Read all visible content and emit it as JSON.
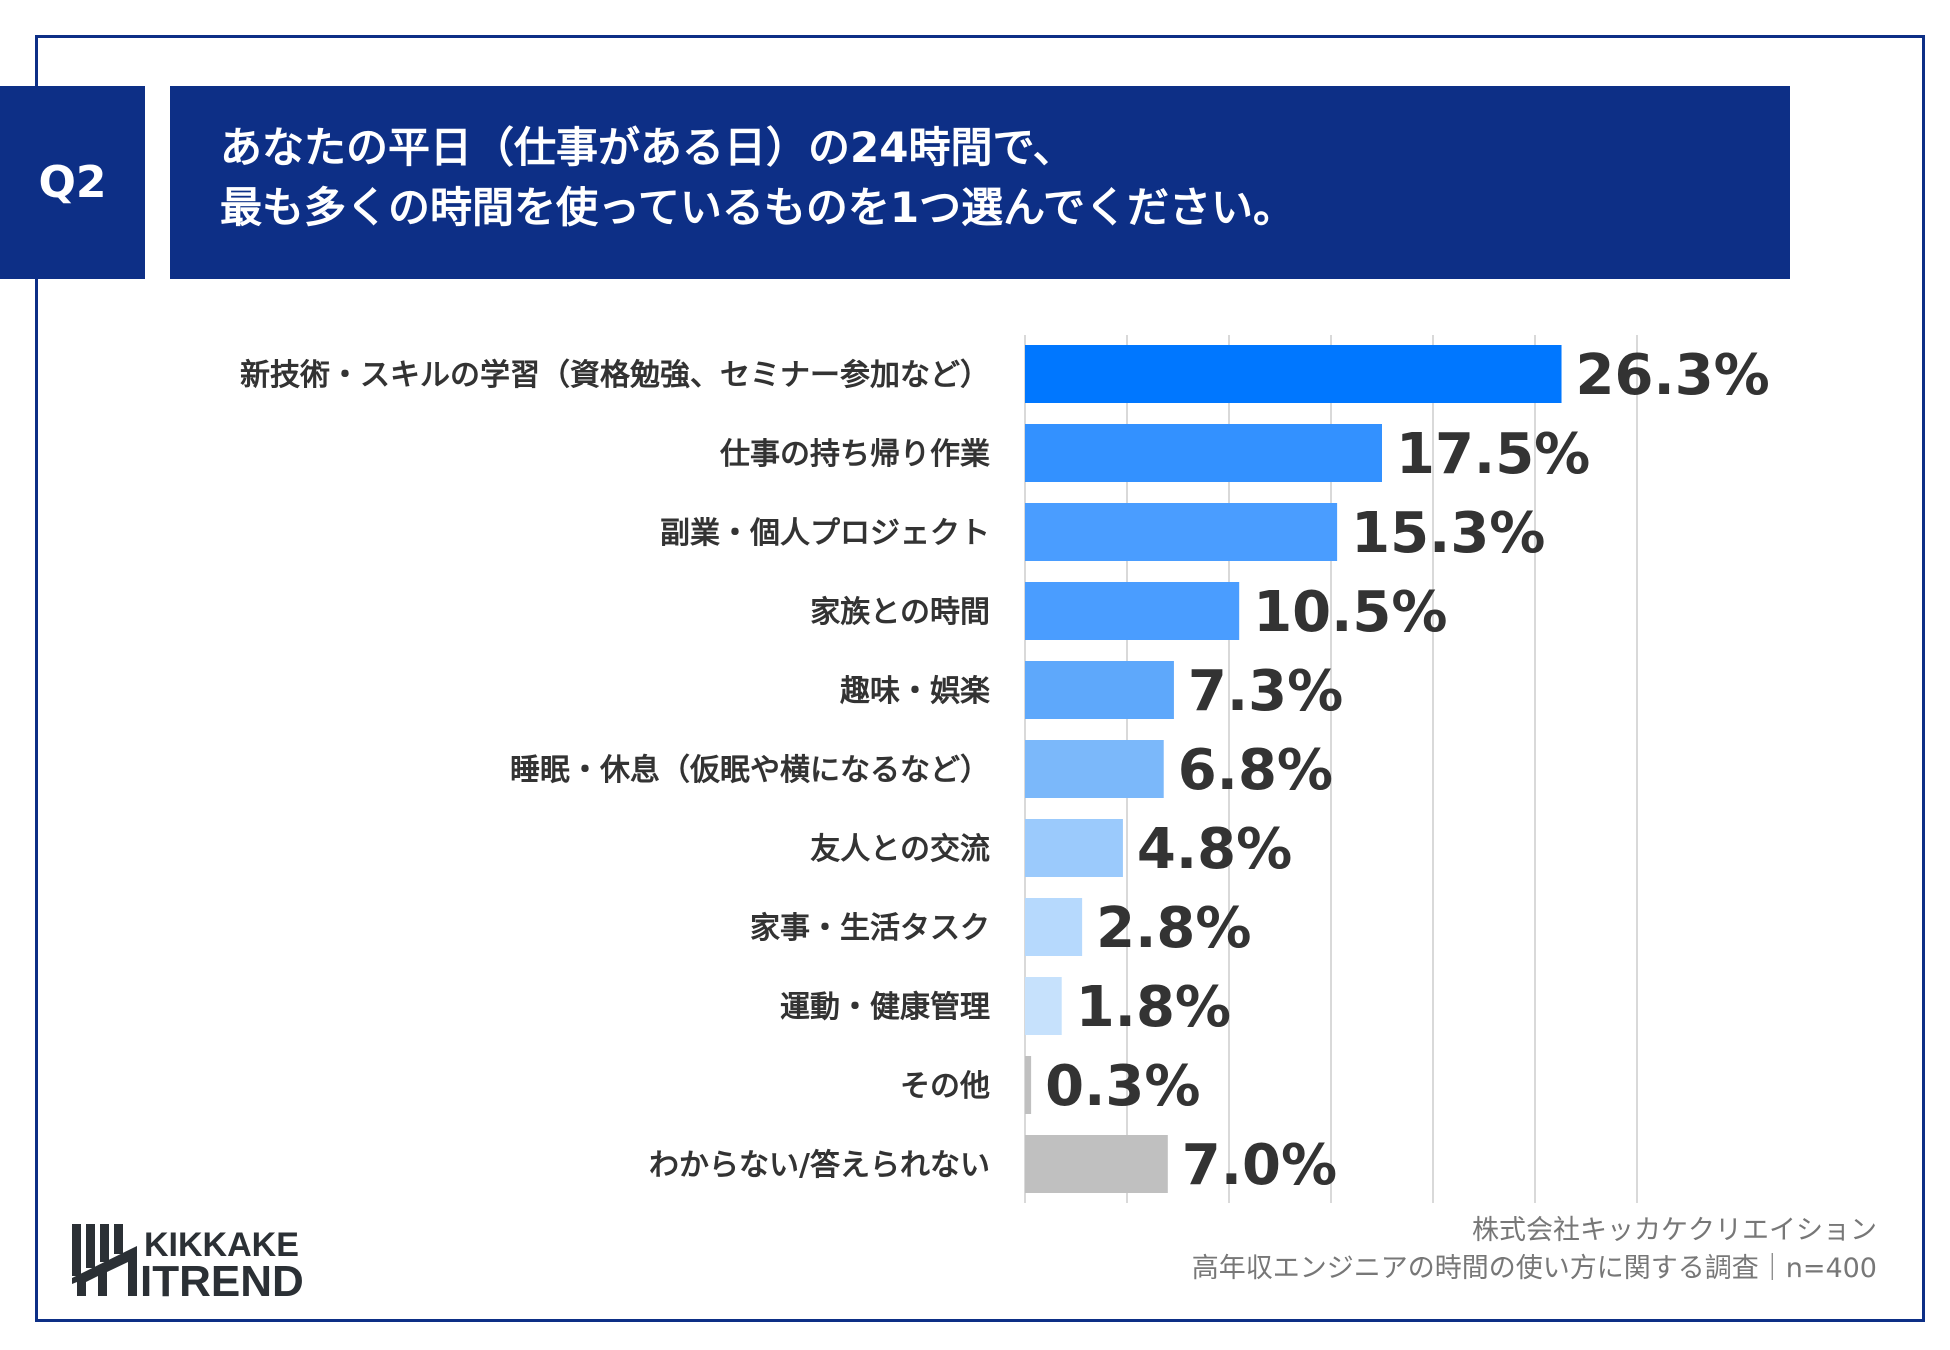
{
  "question_label": "Q2",
  "title_lines": [
    "あなたの平日（仕事がある日）の24時間で、",
    "最も多くの時間を使っているものを1つ選んでください。"
  ],
  "chart_data": {
    "type": "bar",
    "orientation": "horizontal",
    "categories": [
      "新技術・スキルの学習（資格勉強、セミナー参加など）",
      "仕事の持ち帰り作業",
      "副業・個人プロジェクト",
      "家族との時間",
      "趣味・娯楽",
      "睡眠・休息（仮眠や横になるなど）",
      "友人との交流",
      "家事・生活タスク",
      "運動・健康管理",
      "その他",
      "わからない/答えられない"
    ],
    "values": [
      26.3,
      17.5,
      15.3,
      10.5,
      7.3,
      6.8,
      4.8,
      2.8,
      1.8,
      0.3,
      7.0
    ],
    "data_labels": [
      "26.3%",
      "17.5%",
      "15.3%",
      "10.5%",
      "7.3%",
      "6.8%",
      "4.8%",
      "2.8%",
      "1.8%",
      "0.3%",
      "7.0%"
    ],
    "colors": [
      "#0077ff",
      "#3391ff",
      "#4a9dff",
      "#4a9dff",
      "#5ea8fb",
      "#7bb8fa",
      "#9bcafc",
      "#b6d9fd",
      "#c6e1fc",
      "#c0c0c0",
      "#c0c0c0"
    ],
    "xlim": [
      0,
      30
    ],
    "grid": true,
    "unit": "%"
  },
  "footer": {
    "company": "株式会社キッカケクリエイション",
    "survey": "高年収エンジニアの時間の使い方に関する調査｜n=400"
  },
  "logo": {
    "line1": "KIKKAKE",
    "line2": "ITREND"
  }
}
